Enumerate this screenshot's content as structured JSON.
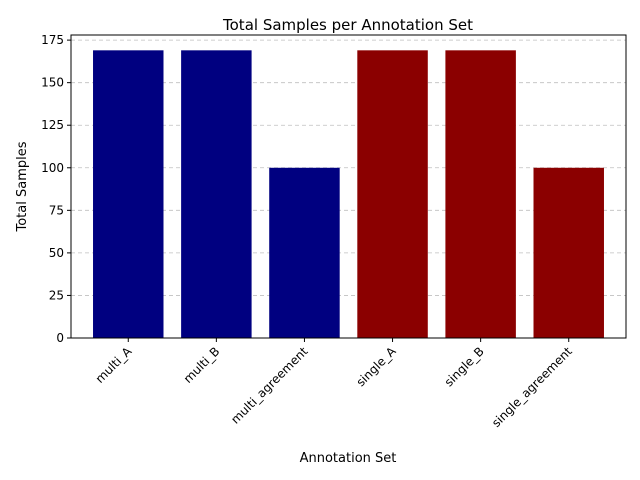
{
  "chart_data": {
    "type": "bar",
    "title": "Total Samples per Annotation Set",
    "xlabel": "Annotation Set",
    "ylabel": "Total Samples",
    "categories": [
      "multi_A",
      "multi_B",
      "multi_agreement",
      "single_A",
      "single_B",
      "single_agreement"
    ],
    "values": [
      169,
      169,
      100,
      169,
      169,
      100
    ],
    "colors": [
      "#000080",
      "#000080",
      "#000080",
      "#8b0000",
      "#8b0000",
      "#8b0000"
    ],
    "ylim": [
      0,
      178
    ],
    "yticks": [
      0,
      25,
      50,
      75,
      100,
      125,
      150,
      175
    ],
    "grid": "y-dashed",
    "legend": "none"
  }
}
